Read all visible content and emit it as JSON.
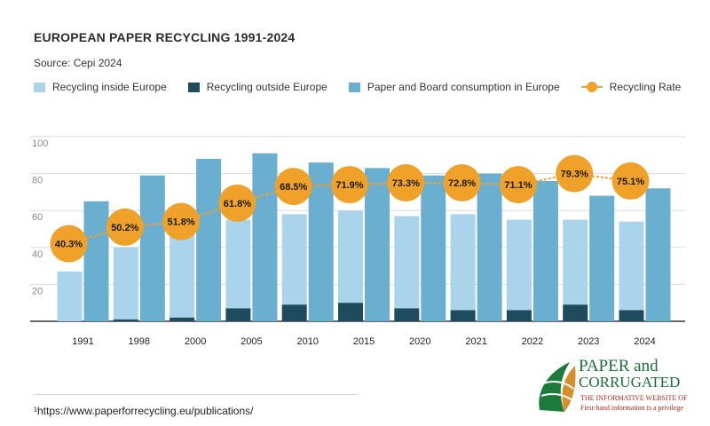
{
  "chart_data": {
    "type": "bar",
    "title": "EUROPEAN PAPER RECYCLING 1991-2024",
    "subtitle": "Source: Cepi 2024",
    "categories": [
      "1991",
      "1998",
      "2000",
      "2005",
      "2010",
      "2015",
      "2020",
      "2021",
      "2022",
      "2023",
      "2024"
    ],
    "ylim": [
      0,
      100
    ],
    "yticks": [
      20,
      40,
      60,
      80,
      100
    ],
    "grid": true,
    "legend_position": "top-left",
    "series": [
      {
        "name": "Recycling inside Europe",
        "color": "#a9d4ec",
        "values": [
          27,
          39,
          45,
          48,
          49,
          50,
          50,
          52,
          49,
          46,
          48
        ]
      },
      {
        "name": "Recycling outside Europe",
        "color": "#1f4c5c",
        "values": [
          0,
          1,
          2,
          7,
          9,
          10,
          7,
          6,
          6,
          9,
          6
        ]
      },
      {
        "name": "Paper and Board consumption in Europe",
        "color": "#6aaed0",
        "values": [
          65,
          79,
          88,
          91,
          86,
          83,
          79,
          80,
          76,
          68,
          72
        ]
      },
      {
        "name": "Recycling Rate",
        "type": "line",
        "color": "#f0a12a",
        "values": [
          40.3,
          50.2,
          51.8,
          61.8,
          68.5,
          71.9,
          73.3,
          72.8,
          71.1,
          79.3,
          75.1
        ],
        "labels": [
          "40.3%",
          "50.2%",
          "51.8%",
          "61.8%",
          "68.5%",
          "71.9%",
          "73.3%",
          "72.8%",
          "71.1%",
          "79.3%",
          "75.1%"
        ],
        "plot_y": [
          42,
          51,
          54,
          64,
          73,
          74,
          75,
          75,
          74,
          80,
          76
        ]
      }
    ]
  },
  "footnote": "¹https://www.paperforrecycling.eu/publications/",
  "logo": {
    "title_line1": "PAPER and",
    "title_line2": "CORRUGATED",
    "sub1": "THE INFORMATIVE WEBSITE OF",
    "sub2": "First-hand information is a privilege"
  }
}
